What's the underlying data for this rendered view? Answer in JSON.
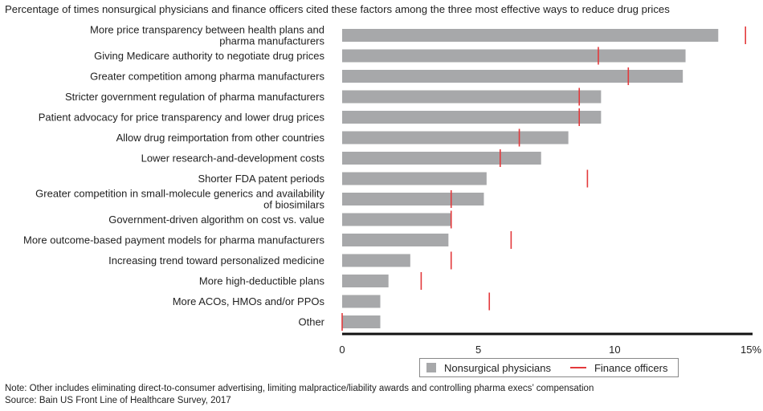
{
  "title": "Percentage of times nonsurgical physicians and finance officers cited these factors among the three most effective ways to reduce drug prices",
  "chart_data": {
    "type": "bar",
    "orientation": "horizontal",
    "categories": [
      [
        "More price transparency between health plans and",
        "pharma manufacturers"
      ],
      [
        "Giving Medicare authority to negotiate drug prices"
      ],
      [
        "Greater competition among pharma manufacturers"
      ],
      [
        "Stricter government regulation of pharma manufacturers"
      ],
      [
        "Patient advocacy for price transparency and lower drug prices"
      ],
      [
        "Allow drug reimportation from other countries"
      ],
      [
        "Lower research-and-development costs"
      ],
      [
        "Shorter FDA patent periods"
      ],
      [
        "Greater competition in small-molecule generics and availability",
        "of biosimilars"
      ],
      [
        "Government-driven algorithm on cost vs. value"
      ],
      [
        "More outcome-based payment models for pharma manufacturers"
      ],
      [
        "Increasing trend toward personalized medicine"
      ],
      [
        "More high-deductible plans"
      ],
      [
        "More ACOs, HMOs and/or PPOs"
      ],
      [
        "Other"
      ]
    ],
    "series": [
      {
        "name": "Nonsurgical physicians",
        "kind": "bar",
        "color": "#a7a8aa",
        "values": [
          13.8,
          12.6,
          12.5,
          9.5,
          9.5,
          8.3,
          7.3,
          5.3,
          5.2,
          4.0,
          3.9,
          2.5,
          1.7,
          1.4,
          1.4
        ]
      },
      {
        "name": "Finance officers",
        "kind": "marker",
        "color": "#e3393c",
        "values": [
          14.8,
          9.4,
          10.5,
          8.7,
          8.7,
          6.5,
          5.8,
          9.0,
          4.0,
          4.0,
          6.2,
          4.0,
          2.9,
          5.4,
          0.0
        ]
      }
    ],
    "xlim": [
      0,
      15
    ],
    "xticks": [
      0,
      5,
      10,
      15
    ],
    "xtick_labels": [
      "0",
      "5",
      "10",
      "15%"
    ],
    "legend_position": "bottom-right"
  },
  "notes": {
    "note": "Note: Other includes eliminating direct-to-consumer advertising, limiting malpractice/liability awards and controlling pharma execs’ compensation",
    "source": "Source: Bain US Front Line of Healthcare Survey, 2017"
  }
}
